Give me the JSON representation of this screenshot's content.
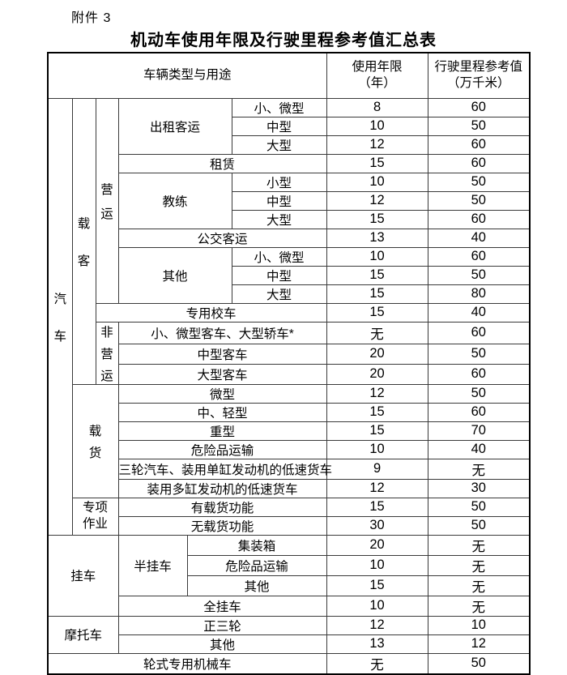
{
  "page": {
    "attachment_label": "附件 3",
    "title": "机动车使用年限及行驶里程参考值汇总表"
  },
  "colors": {
    "text": "#000000",
    "border": "#3a3a3a",
    "outer_border": "#000000",
    "background": "#ffffff"
  },
  "table": {
    "header": [
      {
        "t": "车辆类型与用途",
        "cs": 6
      },
      {
        "t": "使用年限\n（年）"
      },
      {
        "t": "行驶里程参考值\n（万千米）"
      }
    ],
    "rows": [
      [
        {
          "t": "汽车",
          "rs": 23,
          "v": "lg"
        },
        {
          "t": "载客",
          "rs": 15,
          "v": "lg"
        },
        {
          "t": "营运",
          "rs": 11,
          "v": "md"
        },
        {
          "t": "出租客运",
          "rs": 3,
          "cs": 2
        },
        {
          "t": "小、微型"
        },
        {
          "t": "8"
        },
        {
          "t": "60"
        }
      ],
      [
        {
          "t": "中型"
        },
        {
          "t": "10"
        },
        {
          "t": "50"
        }
      ],
      [
        {
          "t": "大型"
        },
        {
          "t": "12"
        },
        {
          "t": "60"
        }
      ],
      [
        {
          "t": "租赁",
          "cs": 3
        },
        {
          "t": "15"
        },
        {
          "t": "60"
        }
      ],
      [
        {
          "t": "教练",
          "rs": 3,
          "cs": 2
        },
        {
          "t": "小型"
        },
        {
          "t": "10"
        },
        {
          "t": "50"
        }
      ],
      [
        {
          "t": "中型"
        },
        {
          "t": "12"
        },
        {
          "t": "50"
        }
      ],
      [
        {
          "t": "大型"
        },
        {
          "t": "15"
        },
        {
          "t": "60"
        }
      ],
      [
        {
          "t": "公交客运",
          "cs": 3
        },
        {
          "t": "13"
        },
        {
          "t": "40"
        }
      ],
      [
        {
          "t": "其他",
          "rs": 3,
          "cs": 2
        },
        {
          "t": "小、微型"
        },
        {
          "t": "10"
        },
        {
          "t": "60"
        }
      ],
      [
        {
          "t": "中型"
        },
        {
          "t": "15"
        },
        {
          "t": "50"
        }
      ],
      [
        {
          "t": "大型"
        },
        {
          "t": "15"
        },
        {
          "t": "80"
        }
      ],
      [
        {
          "t": "专用校车",
          "cs": 4
        },
        {
          "t": "15"
        },
        {
          "t": "40"
        }
      ],
      [
        {
          "t": "非营运",
          "rs": 3,
          "v": "sm"
        },
        {
          "t": "小、微型客车、大型轿车*",
          "cs": 3
        },
        {
          "t": "无"
        },
        {
          "t": "60"
        }
      ],
      [
        {
          "t": "中型客车",
          "cs": 3
        },
        {
          "t": "20"
        },
        {
          "t": "50"
        }
      ],
      [
        {
          "t": "大型客车",
          "cs": 3
        },
        {
          "t": "20"
        },
        {
          "t": "60"
        }
      ],
      [
        {
          "t": "载货",
          "rs": 6,
          "cs": 2,
          "v": "sm"
        },
        {
          "t": "微型",
          "cs": 3
        },
        {
          "t": "12"
        },
        {
          "t": "50"
        }
      ],
      [
        {
          "t": "中、轻型",
          "cs": 3
        },
        {
          "t": "15"
        },
        {
          "t": "60"
        }
      ],
      [
        {
          "t": "重型",
          "cs": 3
        },
        {
          "t": "15"
        },
        {
          "t": "70"
        }
      ],
      [
        {
          "t": "危险品运输",
          "cs": 3
        },
        {
          "t": "10"
        },
        {
          "t": "40"
        }
      ],
      [
        {
          "t": "三轮汽车、装用单缸发动机的低速货车",
          "cs": 3
        },
        {
          "t": "9"
        },
        {
          "t": "无"
        }
      ],
      [
        {
          "t": "装用多缸发动机的低速货车",
          "cs": 3
        },
        {
          "t": "12"
        },
        {
          "t": "30"
        }
      ],
      [
        {
          "t": "专项\n作业",
          "rs": 2,
          "cs": 2
        },
        {
          "t": "有载货功能",
          "cs": 3
        },
        {
          "t": "15"
        },
        {
          "t": "50"
        }
      ],
      [
        {
          "t": "无载货功能",
          "cs": 3
        },
        {
          "t": "30"
        },
        {
          "t": "50"
        }
      ],
      [
        {
          "t": "挂车",
          "rs": 4,
          "cs": 3
        },
        {
          "t": "半挂车",
          "rs": 3
        },
        {
          "t": "集装箱",
          "cs": 2
        },
        {
          "t": "20"
        },
        {
          "t": "无"
        }
      ],
      [
        {
          "t": "危险品运输",
          "cs": 2
        },
        {
          "t": "10"
        },
        {
          "t": "无"
        }
      ],
      [
        {
          "t": "其他",
          "cs": 2
        },
        {
          "t": "15"
        },
        {
          "t": "无"
        }
      ],
      [
        {
          "t": "全挂车",
          "cs": 3
        },
        {
          "t": "10"
        },
        {
          "t": "无"
        }
      ],
      [
        {
          "t": "摩托车",
          "rs": 2,
          "cs": 3
        },
        {
          "t": "正三轮",
          "cs": 3
        },
        {
          "t": "12"
        },
        {
          "t": "10"
        }
      ],
      [
        {
          "t": "其他",
          "cs": 3
        },
        {
          "t": "13"
        },
        {
          "t": "12"
        }
      ],
      [
        {
          "t": "轮式专用机械车",
          "cs": 6
        },
        {
          "t": "无"
        },
        {
          "t": "50"
        }
      ]
    ]
  }
}
